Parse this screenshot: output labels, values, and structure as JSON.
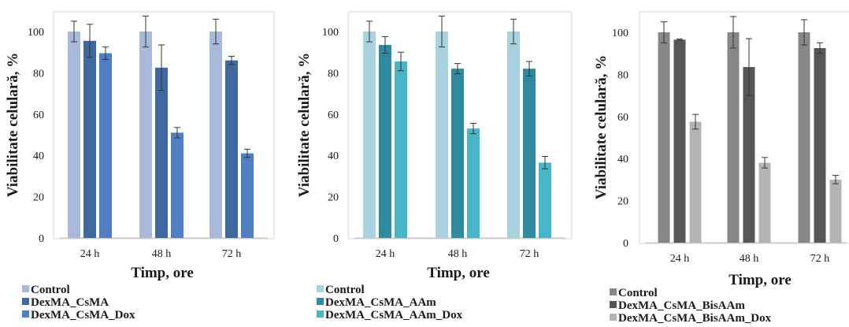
{
  "chart_data": [
    {
      "type": "bar",
      "categories": [
        "24 h",
        "48 h",
        "72 h"
      ],
      "xlabel": "Timp, ore",
      "ylabel": "Viabilitate celulară, %",
      "ylim": [
        0,
        100
      ],
      "yticks": [
        "0",
        "20",
        "40",
        "60",
        "80",
        "100"
      ],
      "grid": false,
      "legend_position": "bottom-left",
      "series": [
        {
          "name": "Control",
          "color": "#a9b9da",
          "values": [
            100,
            100,
            100
          ],
          "errors": [
            5,
            7.5,
            6
          ]
        },
        {
          "name": "DexMA_CsMA",
          "color": "#3e6aa1",
          "values": [
            95.5,
            82.5,
            86
          ],
          "errors": [
            8,
            11,
            2
          ]
        },
        {
          "name": "DexMA_CsMA_Dox",
          "color": "#4f7ec2",
          "values": [
            89.5,
            51,
            41
          ],
          "errors": [
            3,
            2.5,
            2
          ]
        }
      ]
    },
    {
      "type": "bar",
      "categories": [
        "24 h",
        "48 h",
        "72 h"
      ],
      "xlabel": "Timp, ore",
      "ylabel": "Viabilitate celulară, %",
      "ylim": [
        0,
        100
      ],
      "yticks": [
        "0",
        "20",
        "40",
        "60",
        "80",
        "100"
      ],
      "grid": false,
      "legend_position": "bottom-left",
      "series": [
        {
          "name": "Control",
          "color": "#a9d2df",
          "values": [
            100,
            100,
            100
          ],
          "errors": [
            5,
            7.5,
            6
          ]
        },
        {
          "name": "DexMA_CsMA_AAm",
          "color": "#2f8a9f",
          "values": [
            93.5,
            82,
            82
          ],
          "errors": [
            4,
            2.5,
            3.5
          ]
        },
        {
          "name": "DexMA_CsMA_AAm_Dox",
          "color": "#49b5c9",
          "values": [
            85.5,
            53,
            36.5
          ],
          "errors": [
            4.5,
            2.5,
            3
          ]
        }
      ]
    },
    {
      "type": "bar",
      "categories": [
        "24 h",
        "48 h",
        "72 h"
      ],
      "xlabel": "Timp, ore",
      "ylabel": "Viabilitate celulară, %",
      "ylim": [
        0,
        100
      ],
      "yticks": [
        "0",
        "20",
        "40",
        "60",
        "80",
        "100"
      ],
      "grid": false,
      "legend_position": "bottom-left",
      "series": [
        {
          "name": "Control",
          "color": "#878787",
          "values": [
            100,
            100,
            100
          ],
          "errors": [
            5,
            7.5,
            6
          ]
        },
        {
          "name": "DexMA_CsMA_BisAAm",
          "color": "#575757",
          "values": [
            96.5,
            83.5,
            92.5
          ],
          "errors": [
            0.3,
            13.5,
            2.5
          ]
        },
        {
          "name": "DexMA_CsMA_BisAAm_Dox",
          "color": "#b3b3b3",
          "values": [
            57.5,
            38,
            30
          ],
          "errors": [
            3.5,
            2.5,
            2
          ]
        }
      ]
    }
  ]
}
